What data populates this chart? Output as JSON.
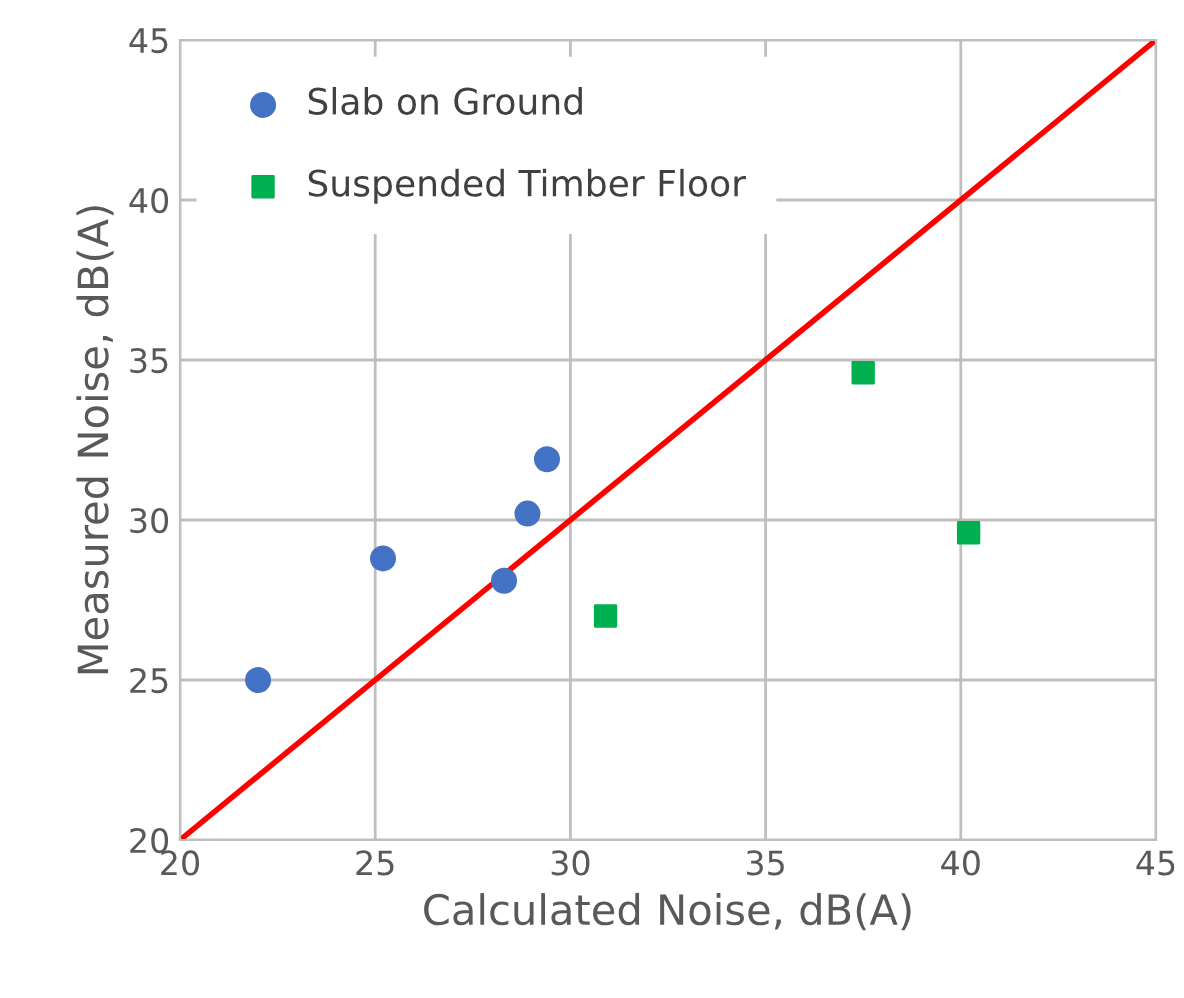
{
  "chart_data": {
    "type": "scatter",
    "xlabel": "Calculated Noise, dB(A)",
    "ylabel": "Measured Noise, dB(A)",
    "xlim": [
      20,
      45
    ],
    "ylim": [
      20,
      45
    ],
    "xticks": [
      20,
      25,
      30,
      35,
      40,
      45
    ],
    "yticks": [
      20,
      25,
      30,
      35,
      40,
      45
    ],
    "grid": true,
    "legend": "top left",
    "series": [
      {
        "name": "Slab on Ground",
        "color": "#4472c4",
        "marker": "circle",
        "x": [
          22.0,
          25.2,
          28.3,
          28.9,
          29.4
        ],
        "values": [
          25.0,
          28.8,
          28.1,
          30.2,
          31.9
        ]
      },
      {
        "name": "Suspended Timber Floor",
        "color": "#00b050",
        "marker": "square",
        "x": [
          30.9,
          37.5,
          40.2
        ],
        "values": [
          27.0,
          34.6,
          29.6
        ]
      },
      {
        "type": "line",
        "color": "#ff0000",
        "marker": "none",
        "x": [
          20,
          45
        ],
        "values": [
          20,
          45
        ]
      }
    ]
  }
}
